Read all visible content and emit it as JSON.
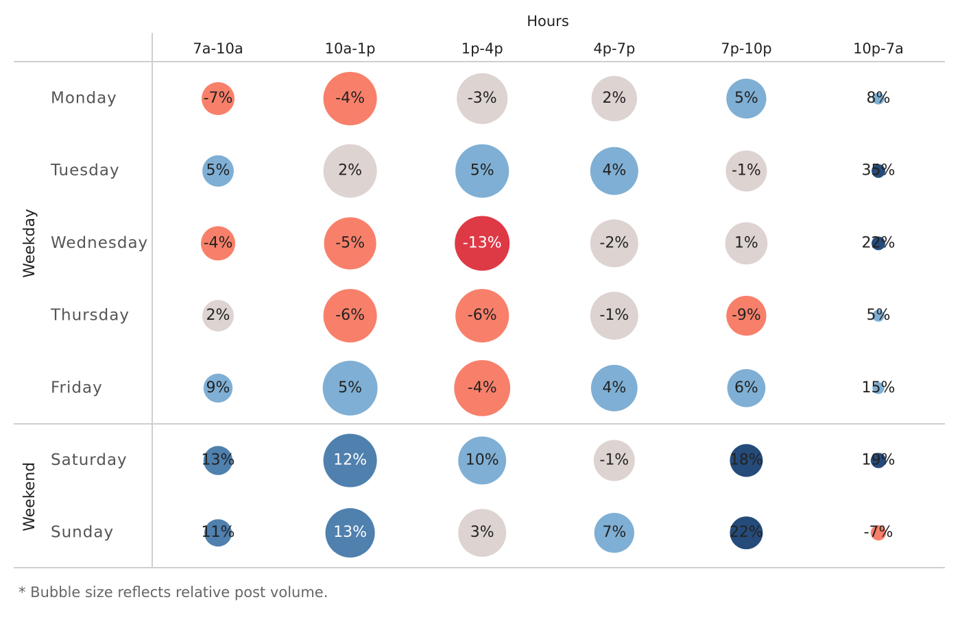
{
  "chart_data": {
    "type": "bubble-table",
    "column_header": "Hours",
    "columns": [
      "7a-10a",
      "10a-1p",
      "1p-4p",
      "4p-7p",
      "7p-10p",
      "10p-7a"
    ],
    "groups": [
      {
        "name": "Weekday",
        "rows": [
          {
            "name": "Monday",
            "values": [
              -7,
              -4,
              -3,
              2,
              5,
              8
            ],
            "sizes": [
              23,
              61,
              55,
              44,
              34,
              3
            ],
            "colors": [
              "#f8806a",
              "#f8806a",
              "#ddd3d1",
              "#ddd3d1",
              "#7fafd4",
              "#7fafd4"
            ]
          },
          {
            "name": "Tuesday",
            "values": [
              5,
              2,
              5,
              4,
              -1,
              35
            ],
            "sizes": [
              21,
              61,
              61,
              49,
              36,
              4
            ],
            "colors": [
              "#7fafd4",
              "#ddd3d1",
              "#7fafd4",
              "#7fafd4",
              "#ddd3d1",
              "#254b7a"
            ]
          },
          {
            "name": "Wednesday",
            "values": [
              -4,
              -5,
              -13,
              -2,
              1,
              22
            ],
            "sizes": [
              25,
              58,
              64,
              49,
              38,
              4
            ],
            "colors": [
              "#f8806a",
              "#f8806a",
              "#de3a46",
              "#ddd3d1",
              "#ddd3d1",
              "#254b7a"
            ]
          },
          {
            "name": "Thursday",
            "values": [
              2,
              -6,
              -6,
              -1,
              -9,
              5
            ],
            "sizes": [
              21,
              61,
              61,
              49,
              34,
              3
            ],
            "colors": [
              "#ddd3d1",
              "#f8806a",
              "#f8806a",
              "#ddd3d1",
              "#f8806a",
              "#7fafd4"
            ]
          },
          {
            "name": "Friday",
            "values": [
              9,
              5,
              -4,
              4,
              6,
              15
            ],
            "sizes": [
              18,
              64,
              67,
              46,
              31,
              3
            ],
            "colors": [
              "#7fafd4",
              "#7fafd4",
              "#f8806a",
              "#7fafd4",
              "#7fafd4",
              "#7fafd4"
            ]
          }
        ]
      },
      {
        "name": "Weekend",
        "rows": [
          {
            "name": "Saturday",
            "values": [
              13,
              12,
              10,
              -1,
              18,
              19
            ],
            "sizes": [
              18,
              61,
              49,
              36,
              23,
              5
            ],
            "colors": [
              "#4f80ae",
              "#4f80ae",
              "#7fafd4",
              "#ddd3d1",
              "#254b7a",
              "#254b7a"
            ]
          },
          {
            "name": "Sunday",
            "values": [
              11,
              13,
              3,
              7,
              22,
              -7
            ],
            "sizes": [
              16,
              52,
              49,
              34,
              23,
              5
            ],
            "colors": [
              "#4f80ae",
              "#4f80ae",
              "#ddd3d1",
              "#7fafd4",
              "#254b7a",
              "#f8806a"
            ]
          }
        ]
      }
    ],
    "value_labels": [
      [
        [
          "-7%",
          "-4%",
          "-3%",
          "2%",
          "5%",
          "8%"
        ],
        [
          "5%",
          "2%",
          "5%",
          "4%",
          "-1%",
          "35%"
        ],
        [
          "-4%",
          "-5%",
          "-13%",
          "-2%",
          "1%",
          "22%"
        ],
        [
          "2%",
          "-6%",
          "-6%",
          "-1%",
          "-9%",
          "5%"
        ],
        [
          "9%",
          "5%",
          "-4%",
          "4%",
          "6%",
          "15%"
        ]
      ],
      [
        [
          "13%",
          "12%",
          "10%",
          "-1%",
          "18%",
          "19%"
        ],
        [
          "11%",
          "13%",
          "3%",
          "7%",
          "22%",
          "-7%"
        ]
      ]
    ],
    "footnote": "* Bubble size reflects relative post volume."
  }
}
